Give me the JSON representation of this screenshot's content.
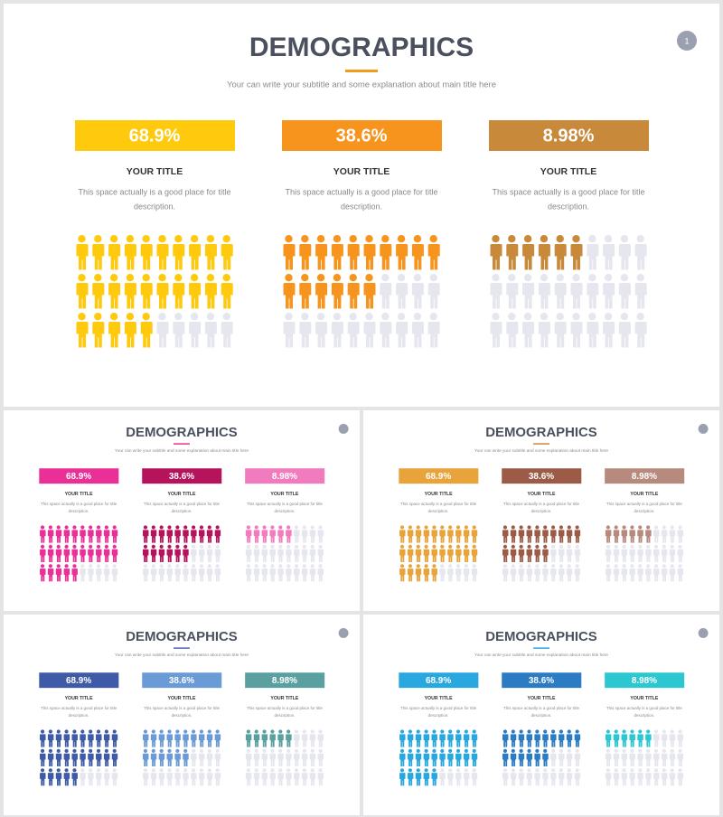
{
  "slides": [
    {
      "title": "DEMOGRAPHICS",
      "subtitle": "Your can write your subtitle and some explanation about main title here",
      "page_number": "1",
      "accent": "#f29a1c",
      "panels": [
        {
          "value": "68.9%",
          "title": "YOUR TITLE",
          "description": [
            "This space actually is a good place for title",
            "description."
          ],
          "color": "#ffc90e",
          "filled": 25,
          "total": 30
        },
        {
          "value": "38.6%",
          "title": "YOUR TITLE",
          "description": [
            "This space actually is a good place for title",
            "description."
          ],
          "color": "#f7941d",
          "filled": 16,
          "total": 30
        },
        {
          "value": "8.98%",
          "title": "YOUR TITLE",
          "description": [
            "This space actually is a good place for title",
            "description."
          ],
          "color": "#c8893a",
          "filled": 6,
          "total": 30
        }
      ]
    },
    {
      "title": "DEMOGRAPHICS",
      "subtitle": "Your can write your subtitle and some explanation about main title here",
      "accent": "#e8308f",
      "panels": [
        {
          "value": "68.9%",
          "title": "YOUR TITLE",
          "description": [
            "This space actually is a good place for title",
            "description."
          ],
          "color": "#ea2f96",
          "filled": 25,
          "total": 30
        },
        {
          "value": "38.6%",
          "title": "YOUR TITLE",
          "description": [
            "This space actually is a good place for title",
            "description."
          ],
          "color": "#b5145c",
          "filled": 16,
          "total": 30
        },
        {
          "value": "8.98%",
          "title": "YOUR TITLE",
          "description": [
            "This space actually is a good place for title",
            "description."
          ],
          "color": "#f27bbf",
          "filled": 6,
          "total": 30
        }
      ]
    },
    {
      "title": "DEMOGRAPHICS",
      "subtitle": "Your can write your subtitle and some explanation about main title here",
      "accent": "#c8893a",
      "panels": [
        {
          "value": "68.9%",
          "title": "YOUR TITLE",
          "description": [
            "This space actually is a good place for title",
            "description."
          ],
          "color": "#e8a33a",
          "filled": 25,
          "total": 30
        },
        {
          "value": "38.6%",
          "title": "YOUR TITLE",
          "description": [
            "This space actually is a good place for title",
            "description."
          ],
          "color": "#9b5b47",
          "filled": 16,
          "total": 30
        },
        {
          "value": "8.98%",
          "title": "YOUR TITLE",
          "description": [
            "This space actually is a good place for title",
            "description."
          ],
          "color": "#b78a7e",
          "filled": 6,
          "total": 30
        }
      ]
    },
    {
      "title": "DEMOGRAPHICS",
      "subtitle": "Your can write your subtitle and some explanation about main title here",
      "accent": "#4a64b0",
      "panels": [
        {
          "value": "68.9%",
          "title": "YOUR TITLE",
          "description": [
            "This space actually is a good place for title",
            "description."
          ],
          "color": "#3f5aa6",
          "filled": 25,
          "total": 30
        },
        {
          "value": "38.6%",
          "title": "YOUR TITLE",
          "description": [
            "This space actually is a good place for title",
            "description."
          ],
          "color": "#6a9bd6",
          "filled": 16,
          "total": 30
        },
        {
          "value": "8.98%",
          "title": "YOUR TITLE",
          "description": [
            "This space actually is a good place for title",
            "description."
          ],
          "color": "#5aa0a0",
          "filled": 6,
          "total": 30
        }
      ]
    },
    {
      "title": "DEMOGRAPHICS",
      "subtitle": "Your can write your subtitle and some explanation about main title here",
      "accent": "#29a8e0",
      "panels": [
        {
          "value": "68.9%",
          "title": "YOUR TITLE",
          "description": [
            "This space actually is a good place for title",
            "description."
          ],
          "color": "#29a8e0",
          "filled": 25,
          "total": 30
        },
        {
          "value": "38.6%",
          "title": "YOUR TITLE",
          "description": [
            "This space actually is a good place for title",
            "description."
          ],
          "color": "#2c7cc4",
          "filled": 16,
          "total": 30
        },
        {
          "value": "8.98%",
          "title": "YOUR TITLE",
          "description": [
            "This space actually is a good place for title",
            "description."
          ],
          "color": "#2cc7d0",
          "filled": 6,
          "total": 30
        }
      ]
    }
  ]
}
